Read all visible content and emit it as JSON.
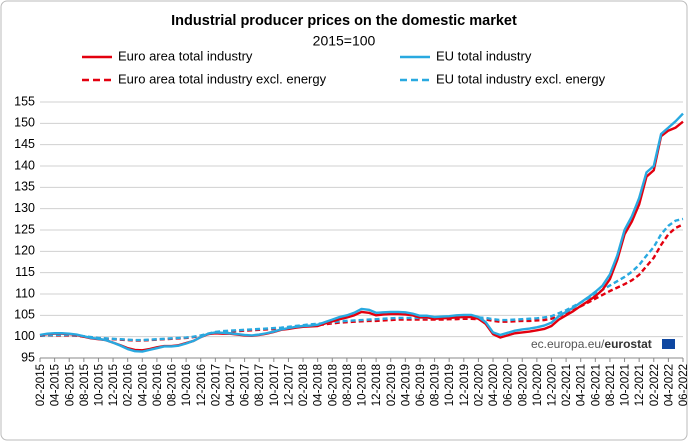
{
  "chart_data": {
    "type": "line",
    "title": "Industrial producer prices on the domestic market",
    "subtitle": "2015=100",
    "annotation": {
      "source": "ec.europa.eu/",
      "source_brand": "eurostat"
    },
    "categories": [
      "02-2015",
      null,
      "04-2015",
      null,
      "06-2015",
      null,
      "08-2015",
      null,
      "10-2015",
      null,
      "12-2015",
      null,
      "02-2016",
      null,
      "04-2016",
      null,
      "06-2016",
      null,
      "08-2016",
      null,
      "10-2016",
      null,
      "12-2016",
      null,
      "02-2017",
      null,
      "04-2017",
      null,
      "06-2017",
      null,
      "08-2017",
      null,
      "10-2017",
      null,
      "12-2017",
      null,
      "02-2018",
      null,
      "04-2018",
      null,
      "06-2018",
      null,
      "08-2018",
      null,
      "10-2018",
      null,
      "12-2018",
      null,
      "02-2019",
      null,
      "04-2019",
      null,
      "06-2019",
      null,
      "08-2019",
      null,
      "10-2019",
      null,
      "12-2019",
      null,
      "02-2020",
      null,
      "04-2020",
      null,
      "06-2020",
      null,
      "08-2020",
      null,
      "10-2020",
      null,
      "12-2020",
      null,
      "02-2021",
      null,
      "04-2021",
      null,
      "06-2021",
      null,
      "08-2021",
      null,
      "10-2021",
      null,
      "12-2021",
      null,
      "02-2022",
      null,
      "04-2022",
      null,
      "06-2022"
    ],
    "series": [
      {
        "name": "Euro area total industry",
        "color": "#e3000f",
        "style": "solid",
        "values": [
          100.3,
          100.6,
          100.7,
          100.7,
          100.6,
          100.4,
          100.0,
          99.6,
          99.4,
          99.2,
          98.6,
          98.0,
          97.3,
          96.9,
          96.8,
          97.1,
          97.5,
          97.8,
          97.8,
          98.0,
          98.5,
          99.0,
          99.9,
          100.6,
          100.8,
          100.7,
          100.7,
          100.5,
          100.3,
          100.2,
          100.4,
          100.7,
          101.1,
          101.6,
          101.8,
          102.1,
          102.3,
          102.4,
          102.5,
          103.1,
          103.6,
          104.1,
          104.5,
          105.0,
          105.8,
          105.6,
          105.0,
          105.2,
          105.3,
          105.3,
          105.2,
          105.0,
          104.5,
          104.5,
          104.2,
          104.3,
          104.4,
          104.5,
          104.6,
          104.6,
          104.2,
          103.0,
          100.6,
          99.8,
          100.3,
          100.8,
          101.0,
          101.2,
          101.5,
          101.8,
          102.5,
          104.0,
          105.0,
          106.0,
          107.2,
          108.3,
          109.5,
          111.0,
          113.5,
          118.0,
          124.0,
          127.0,
          131.0,
          137.5,
          139.0,
          147.0,
          148.3,
          149.0,
          150.4
        ]
      },
      {
        "name": "EU total industry",
        "color": "#29a9e0",
        "style": "solid",
        "values": [
          100.4,
          100.7,
          100.8,
          100.8,
          100.7,
          100.5,
          100.1,
          99.7,
          99.5,
          99.2,
          98.6,
          97.9,
          97.1,
          96.6,
          96.5,
          96.9,
          97.3,
          97.7,
          97.7,
          97.9,
          98.4,
          99.0,
          99.9,
          100.7,
          101.0,
          100.9,
          100.8,
          100.6,
          100.4,
          100.3,
          100.5,
          100.8,
          101.2,
          101.7,
          102.0,
          102.3,
          102.5,
          102.6,
          102.8,
          103.4,
          104.0,
          104.6,
          105.0,
          105.6,
          106.5,
          106.3,
          105.6,
          105.7,
          105.8,
          105.8,
          105.7,
          105.4,
          104.9,
          104.9,
          104.6,
          104.7,
          104.8,
          105.0,
          105.1,
          105.1,
          104.6,
          103.4,
          101.0,
          100.4,
          100.9,
          101.4,
          101.7,
          101.9,
          102.2,
          102.6,
          103.3,
          104.8,
          105.8,
          106.8,
          108.0,
          109.2,
          110.5,
          112.0,
          114.6,
          119.0,
          125.0,
          128.2,
          132.5,
          138.5,
          140.0,
          147.5,
          149.0,
          150.5,
          152.3
        ]
      },
      {
        "name": "Euro area total industry excl. energy",
        "color": "#e3000f",
        "style": "dashed",
        "values": [
          100.2,
          100.3,
          100.3,
          100.3,
          100.3,
          100.2,
          100.0,
          99.8,
          99.6,
          99.5,
          99.4,
          99.3,
          99.2,
          99.1,
          99.1,
          99.2,
          99.3,
          99.4,
          99.5,
          99.6,
          99.7,
          99.9,
          100.2,
          100.6,
          100.9,
          101.1,
          101.2,
          101.3,
          101.4,
          101.5,
          101.6,
          101.7,
          101.8,
          101.9,
          102.0,
          102.2,
          102.4,
          102.6,
          102.7,
          102.9,
          103.1,
          103.3,
          103.4,
          103.5,
          103.6,
          103.7,
          103.7,
          103.8,
          103.9,
          104.0,
          104.0,
          104.0,
          104.0,
          104.0,
          104.0,
          104.0,
          104.1,
          104.1,
          104.2,
          104.2,
          104.1,
          104.0,
          103.7,
          103.5,
          103.5,
          103.6,
          103.7,
          103.7,
          103.8,
          103.9,
          104.2,
          104.8,
          105.4,
          106.2,
          107.1,
          108.0,
          108.9,
          109.8,
          110.7,
          111.5,
          112.3,
          113.2,
          114.5,
          116.5,
          118.5,
          121.5,
          124.0,
          125.5,
          126.3
        ]
      },
      {
        "name": "EU total industry excl. energy",
        "color": "#29a9e0",
        "style": "dashed",
        "values": [
          100.2,
          100.3,
          100.4,
          100.4,
          100.4,
          100.3,
          100.1,
          99.9,
          99.7,
          99.6,
          99.5,
          99.4,
          99.3,
          99.2,
          99.2,
          99.3,
          99.4,
          99.5,
          99.6,
          99.7,
          99.8,
          100.0,
          100.3,
          100.7,
          101.1,
          101.3,
          101.4,
          101.5,
          101.6,
          101.7,
          101.8,
          101.9,
          102.0,
          102.1,
          102.3,
          102.5,
          102.7,
          102.9,
          103.0,
          103.2,
          103.4,
          103.6,
          103.7,
          103.8,
          103.9,
          104.0,
          104.1,
          104.2,
          104.3,
          104.4,
          104.4,
          104.4,
          104.4,
          104.4,
          104.4,
          104.4,
          104.5,
          104.5,
          104.6,
          104.6,
          104.5,
          104.4,
          104.1,
          103.9,
          103.9,
          104.0,
          104.1,
          104.2,
          104.3,
          104.5,
          104.8,
          105.5,
          106.2,
          107.1,
          108.0,
          109.0,
          110.0,
          111.0,
          112.0,
          113.0,
          114.0,
          115.2,
          116.8,
          119.0,
          121.0,
          124.0,
          126.0,
          127.2,
          127.6
        ]
      }
    ],
    "ylim": [
      95,
      155
    ],
    "yticks": [
      95,
      100,
      105,
      110,
      115,
      120,
      125,
      130,
      135,
      140,
      145,
      150,
      155
    ],
    "grid": true
  }
}
